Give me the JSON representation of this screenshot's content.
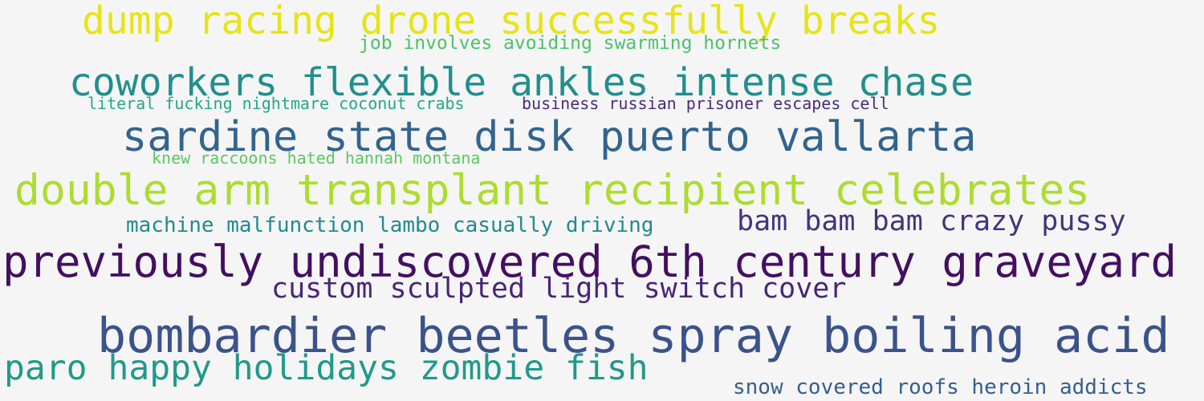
{
  "phrases": [
    {
      "text": "dump racing drone successfully breaks",
      "color": "#e6e419"
    },
    {
      "text": "job involves avoiding swarming hornets",
      "color": "#4cc26c"
    },
    {
      "text": "coworkers flexible ankles intense chase",
      "color": "#218f8d"
    },
    {
      "text": "literal fucking nightmare coconut crabs",
      "color": "#26a884"
    },
    {
      "text": "business russian prisoner escapes cell",
      "color": "#472c7a"
    },
    {
      "text": "sardine state disk puerto vallarta",
      "color": "#32648e"
    },
    {
      "text": "knew raccoons hated hannah montana",
      "color": "#5ac864"
    },
    {
      "text": "double arm transplant recipient celebrates",
      "color": "#addc30"
    },
    {
      "text": "machine malfunction lambo casually driving",
      "color": "#23898e"
    },
    {
      "text": "bam bam bam crazy pussy",
      "color": "#46327e"
    },
    {
      "text": "previously undiscovered 6th century graveyard",
      "color": "#440f62"
    },
    {
      "text": "custom sculpted light switch cover",
      "color": "#482677"
    },
    {
      "text": "bombardier beetles spray boiling acid",
      "color": "#3b528b"
    },
    {
      "text": "paro happy holidays zombie fish",
      "color": "#1f9a8a"
    },
    {
      "text": "snow covered roofs heroin addicts",
      "color": "#355f8d"
    }
  ]
}
